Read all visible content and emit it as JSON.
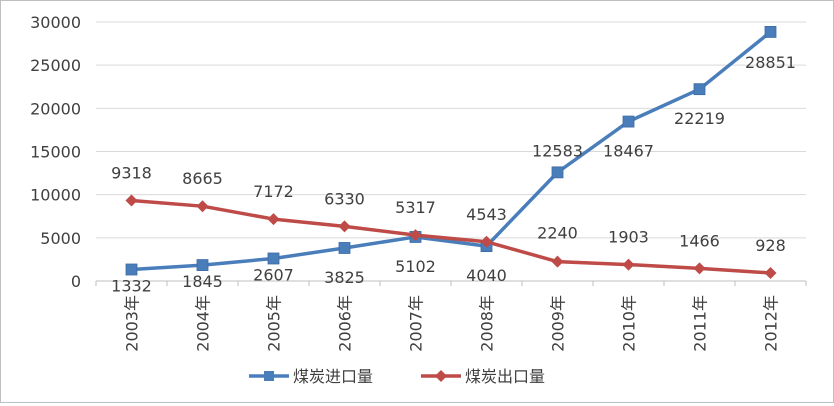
{
  "chart_data": {
    "type": "line",
    "categories": [
      "2003年",
      "2004年",
      "2005年",
      "2006年",
      "2007年",
      "2008年",
      "2009年",
      "2010年",
      "2011年",
      "2012年"
    ],
    "series": [
      {
        "name": "煤炭进口量",
        "color": "#4a7ebb",
        "marker": "square",
        "values": [
          1332,
          1845,
          2607,
          3825,
          5102,
          4040,
          12583,
          18467,
          22219,
          28851
        ]
      },
      {
        "name": "煤炭出口量",
        "color": "#be4b48",
        "marker": "diamond",
        "values": [
          9318,
          8665,
          7172,
          6330,
          5317,
          4543,
          2240,
          1903,
          1466,
          928
        ]
      }
    ],
    "yticks": [
      0,
      5000,
      10000,
      15000,
      20000,
      25000,
      30000
    ],
    "ylim": [
      0,
      30000
    ],
    "title": "",
    "xlabel": "",
    "ylabel": "",
    "grid": true,
    "legend": "bottom"
  }
}
